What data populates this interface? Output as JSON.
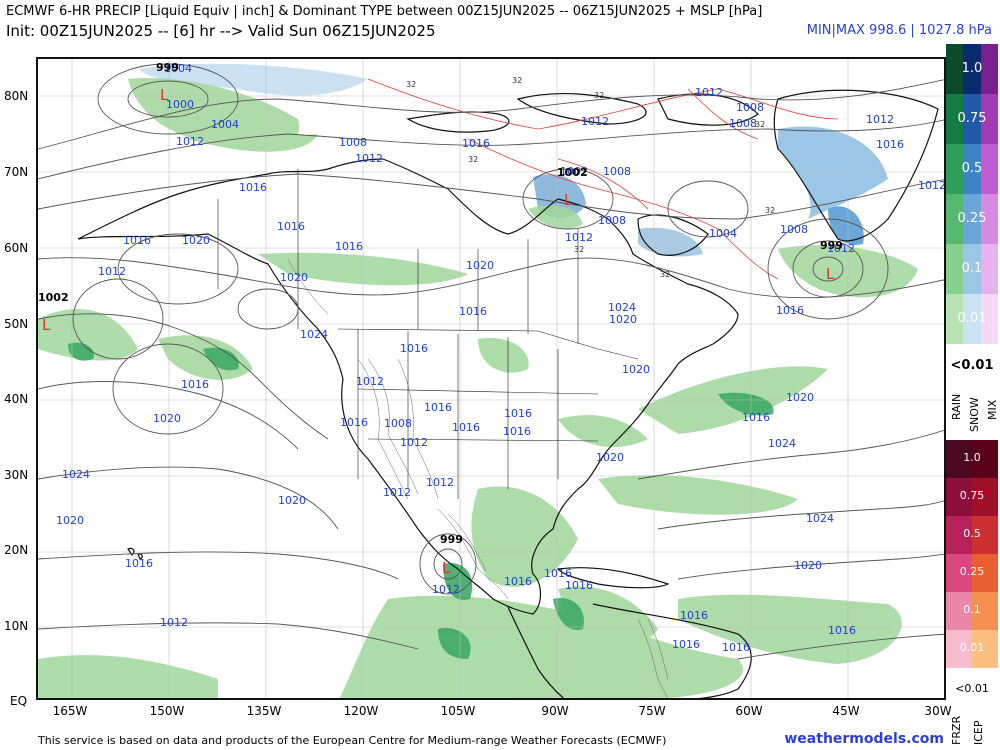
{
  "header": {
    "title": "ECMWF 6-HR PRECIP [Liquid Equiv | inch] & Dominant TYPE between 00Z15JUN2025 -- 06Z15JUN2025 + MSLP [hPa]",
    "subtitle": "Init: 00Z15JUN2025 -- [6] hr --> Valid Sun 06Z15JUN2025",
    "minmax": "MIN|MAX 998.6 | 1027.8 hPa"
  },
  "axes": {
    "y_labels": [
      "80N",
      "70N",
      "60N",
      "50N",
      "40N",
      "30N",
      "20N",
      "10N",
      "EQ"
    ],
    "x_labels": [
      "165W",
      "150W",
      "135W",
      "120W",
      "105W",
      "90W",
      "75W",
      "60W",
      "45W",
      "30W"
    ]
  },
  "legend_top": {
    "values": [
      "1.0",
      "0.75",
      "0.5",
      "0.25",
      "0.1",
      "0.01"
    ],
    "below": "<0.01",
    "type_labels": [
      "RAIN",
      "SNOW",
      "MIX"
    ],
    "rain_colors": [
      "#0b4a2a",
      "#157a45",
      "#2f9e5a",
      "#56b870",
      "#86cf8c",
      "#b8e2b3"
    ],
    "snow_colors": [
      "#0a2a6e",
      "#1f5aa8",
      "#3c84c6",
      "#6aa7d8",
      "#9cc6e6",
      "#cbe2f2"
    ],
    "mix_colors": [
      "#7a1f8f",
      "#a03bb4",
      "#c05dd0",
      "#d88ae2",
      "#e8b2ee",
      "#f4d8f6"
    ]
  },
  "legend_bottom": {
    "values": [
      "1.0",
      "0.75",
      "0.5",
      "0.25",
      "0.1",
      "0.01"
    ],
    "below": "<0.01",
    "type_labels": [
      "FRZR",
      "ICEP"
    ],
    "frzr_colors": [
      "#4a0a22",
      "#8a0f3a",
      "#b8205a",
      "#d8487e",
      "#ea86a8",
      "#f6bccd"
    ],
    "icep_colors": [
      "#5a0018",
      "#a0102a",
      "#cc3030",
      "#e86030",
      "#f49050",
      "#fbc080"
    ]
  },
  "map": {
    "isobar_labels": [
      "1004",
      "1000",
      "1004",
      "1012",
      "1008",
      "1012",
      "1016",
      "1016",
      "1012",
      "1012",
      "1008",
      "1008",
      "1012",
      "1016",
      "1012",
      "1016",
      "1016",
      "1020",
      "1016",
      "1020",
      "1012",
      "1024",
      "1016",
      "1020",
      "1016",
      "1012",
      "1016",
      "1024",
      "1020",
      "1016",
      "1020",
      "1012",
      "1016",
      "1008",
      "1012",
      "1016",
      "1020",
      "1016",
      "1020",
      "1020",
      "1016",
      "1024",
      "1024",
      "1020",
      "1012",
      "1020",
      "1024",
      "1016",
      "1012",
      "1020",
      "1016",
      "1016",
      "1016",
      "1016",
      "1016",
      "1012",
      "1016",
      "1016",
      "1016",
      "1008",
      "1002",
      "1008",
      "1012",
      "1004",
      "1008",
      "1012",
      "1016"
    ],
    "low_markers": [
      "L",
      "L",
      "L",
      "L",
      "L"
    ],
    "pressure_minima": [
      "999",
      "1002",
      "1002",
      "999",
      "999"
    ],
    "contour_32_labels": [
      "32",
      "32",
      "32",
      "32",
      "32",
      "32",
      "32",
      "32"
    ]
  },
  "footer": {
    "text": "This service is based on data and products of the European Centre for Medium-range Weather Forecasts (ECMWF)",
    "site": "weathermodels.com"
  }
}
